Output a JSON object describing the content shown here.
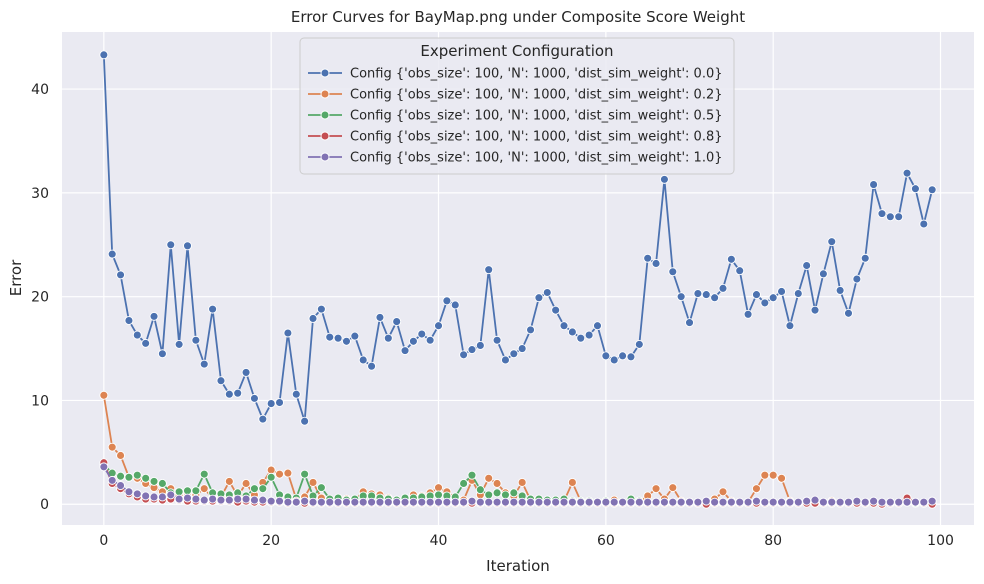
{
  "chart_data": {
    "type": "line",
    "title": "Error Curves for BayMap.png under Composite Score Weight",
    "xlabel": "Iteration",
    "ylabel": "Error",
    "xlim": [
      -5,
      104
    ],
    "ylim": [
      -2,
      45.5
    ],
    "xticks": [
      0,
      20,
      40,
      60,
      80,
      100
    ],
    "yticks": [
      0,
      10,
      20,
      30,
      40
    ],
    "grid": true,
    "background": "#eaeaf2",
    "legend": {
      "title": "Experiment Configuration",
      "placement": "top-center"
    },
    "x_start": 0,
    "series": [
      {
        "name": "Config {'obs_size': 100, 'N': 1000, 'dist_sim_weight': 0.0}",
        "color": "#4c72b0",
        "values": [
          43.3,
          24.1,
          22.1,
          17.7,
          16.3,
          15.5,
          18.1,
          14.5,
          25.0,
          15.4,
          24.9,
          15.8,
          13.5,
          18.8,
          11.9,
          10.6,
          10.7,
          12.7,
          10.2,
          8.2,
          9.7,
          9.8,
          16.5,
          10.6,
          8.0,
          17.9,
          18.8,
          16.1,
          16.0,
          15.7,
          16.2,
          13.9,
          13.3,
          18.0,
          16.0,
          17.6,
          14.8,
          15.7,
          16.4,
          15.8,
          17.2,
          19.6,
          19.2,
          14.4,
          14.9,
          15.3,
          22.6,
          15.8,
          13.9,
          14.5,
          15.0,
          16.8,
          19.9,
          20.4,
          18.7,
          17.2,
          16.6,
          16.0,
          16.3,
          17.2,
          14.3,
          13.9,
          14.3,
          14.2,
          15.4,
          23.7,
          23.2,
          31.3,
          22.4,
          20.0,
          17.5,
          20.3,
          20.2,
          19.9,
          20.8,
          23.6,
          22.5,
          18.3,
          20.2,
          19.4,
          19.9,
          20.5,
          17.2,
          20.3,
          23.0,
          18.7,
          22.2,
          25.3,
          20.6,
          18.4,
          21.7,
          23.7,
          30.8,
          28.0,
          27.7,
          27.7,
          31.9,
          30.4,
          27.0,
          30.3
        ]
      },
      {
        "name": "Config {'obs_size': 100, 'N': 1000, 'dist_sim_weight': 0.2}",
        "color": "#dd8452",
        "values": [
          10.5,
          5.5,
          4.7,
          2.6,
          2.5,
          2.0,
          1.6,
          1.2,
          1.5,
          0.9,
          1.1,
          0.9,
          1.5,
          0.6,
          0.7,
          2.2,
          0.8,
          2.0,
          0.9,
          2.1,
          3.3,
          2.9,
          3.0,
          0.5,
          0.7,
          2.1,
          0.6,
          0.4,
          0.3,
          0.5,
          0.4,
          1.2,
          1.0,
          0.9,
          0.6,
          0.4,
          0.5,
          0.9,
          0.8,
          1.1,
          1.6,
          1.2,
          0.6,
          0.4,
          2.3,
          0.9,
          2.5,
          2.0,
          1.1,
          0.8,
          2.1,
          0.4,
          0.3,
          0.4,
          0.2,
          0.3,
          2.1,
          0.3,
          0.2,
          0.2,
          0.3,
          0.4,
          0.1,
          0.3,
          0.2,
          0.8,
          1.5,
          0.5,
          1.6,
          0.3,
          0.2,
          0.1,
          0.3,
          0.5,
          1.2,
          0.3,
          0.2,
          0.2,
          1.5,
          2.8,
          2.8,
          2.5,
          0.3,
          0.1,
          0.3,
          0.2,
          0.2,
          0.3,
          0.1,
          0.1,
          0.2,
          0.2,
          0.1,
          0.1,
          0.2,
          0.1,
          0.2,
          0.1,
          0.1,
          0.3
        ]
      },
      {
        "name": "Config {'obs_size': 100, 'N': 1000, 'dist_sim_weight': 0.5}",
        "color": "#55a868",
        "values": [
          3.8,
          3.0,
          2.7,
          2.6,
          2.8,
          2.5,
          2.2,
          2.0,
          1.1,
          1.2,
          1.3,
          1.3,
          2.9,
          1.1,
          1.0,
          0.9,
          1.1,
          0.8,
          1.5,
          1.5,
          2.6,
          0.9,
          0.7,
          0.6,
          2.9,
          0.8,
          1.6,
          0.5,
          0.6,
          0.4,
          0.5,
          0.8,
          0.8,
          0.6,
          0.5,
          0.4,
          0.6,
          0.6,
          0.7,
          0.8,
          0.9,
          0.8,
          0.7,
          2.0,
          2.8,
          1.4,
          0.9,
          1.1,
          0.9,
          1.1,
          0.8,
          0.5,
          0.5,
          0.4,
          0.4,
          0.5,
          0.3,
          0.3,
          0.3,
          0.2,
          0.3,
          0.2,
          0.2,
          0.5,
          0.3,
          0.2,
          0.2,
          0.2,
          0.2,
          0.2,
          0.2,
          0.2,
          0.2,
          0.1,
          0.2,
          0.2,
          0.1,
          0.2,
          0.1,
          0.2,
          0.2,
          0.1,
          0.2,
          0.1,
          0.2,
          0.1,
          0.1,
          0.1,
          0.1,
          0.1,
          0.1,
          0.1,
          0.1,
          0.1,
          0.1,
          0.1,
          0.2,
          0.1,
          0.1,
          0.1
        ]
      },
      {
        "name": "Config {'obs_size': 100, 'N': 1000, 'dist_sim_weight': 0.8}",
        "color": "#c44e52",
        "values": [
          4.0,
          2.0,
          1.5,
          1.0,
          0.7,
          0.5,
          0.5,
          0.4,
          0.5,
          0.4,
          0.3,
          0.3,
          0.3,
          0.3,
          0.3,
          0.3,
          0.2,
          0.3,
          0.2,
          0.2,
          0.2,
          0.2,
          0.1,
          0.3,
          0.1,
          0.1,
          0.1,
          0.1,
          0.1,
          0.1,
          0.1,
          0.1,
          0.1,
          0.1,
          0.1,
          0.1,
          0.1,
          0.1,
          0.1,
          0.1,
          0.1,
          0.1,
          0.1,
          0.1,
          0.1,
          0.1,
          0.1,
          0.1,
          0.1,
          0.1,
          0.1,
          0.1,
          0.1,
          0.1,
          0.1,
          0.1,
          0.1,
          0.1,
          0.1,
          0.1,
          0.1,
          0.1,
          0.1,
          0.1,
          0.1,
          0.1,
          0.1,
          0.1,
          0.1,
          0.1,
          0.1,
          0.1,
          0.0,
          0.1,
          0.1,
          0.1,
          0.1,
          0.1,
          0.1,
          0.1,
          0.1,
          0.1,
          0.1,
          0.1,
          0.1,
          0.1,
          0.1,
          0.1,
          0.1,
          0.1,
          0.1,
          0.1,
          0.1,
          0.0,
          0.1,
          0.1,
          0.6,
          0.2,
          0.1,
          0.0
        ]
      },
      {
        "name": "Config {'obs_size': 100, 'N': 1000, 'dist_sim_weight': 1.0}",
        "color": "#8172b3",
        "values": [
          3.6,
          2.3,
          1.8,
          1.2,
          1.0,
          0.8,
          0.7,
          0.7,
          0.9,
          0.5,
          0.6,
          0.5,
          0.4,
          0.5,
          0.4,
          0.4,
          0.5,
          0.5,
          0.4,
          0.4,
          0.3,
          0.3,
          0.2,
          0.2,
          0.3,
          0.2,
          0.2,
          0.2,
          0.2,
          0.2,
          0.2,
          0.2,
          0.2,
          0.2,
          0.2,
          0.2,
          0.2,
          0.2,
          0.2,
          0.2,
          0.2,
          0.2,
          0.2,
          0.2,
          0.3,
          0.2,
          0.2,
          0.2,
          0.2,
          0.2,
          0.2,
          0.2,
          0.2,
          0.2,
          0.2,
          0.2,
          0.2,
          0.2,
          0.2,
          0.2,
          0.2,
          0.2,
          0.2,
          0.2,
          0.2,
          0.2,
          0.2,
          0.2,
          0.2,
          0.2,
          0.2,
          0.2,
          0.3,
          0.2,
          0.2,
          0.2,
          0.2,
          0.2,
          0.3,
          0.2,
          0.2,
          0.2,
          0.2,
          0.2,
          0.3,
          0.4,
          0.2,
          0.2,
          0.2,
          0.2,
          0.3,
          0.2,
          0.3,
          0.2,
          0.2,
          0.2,
          0.2,
          0.2,
          0.2,
          0.3
        ]
      }
    ]
  }
}
